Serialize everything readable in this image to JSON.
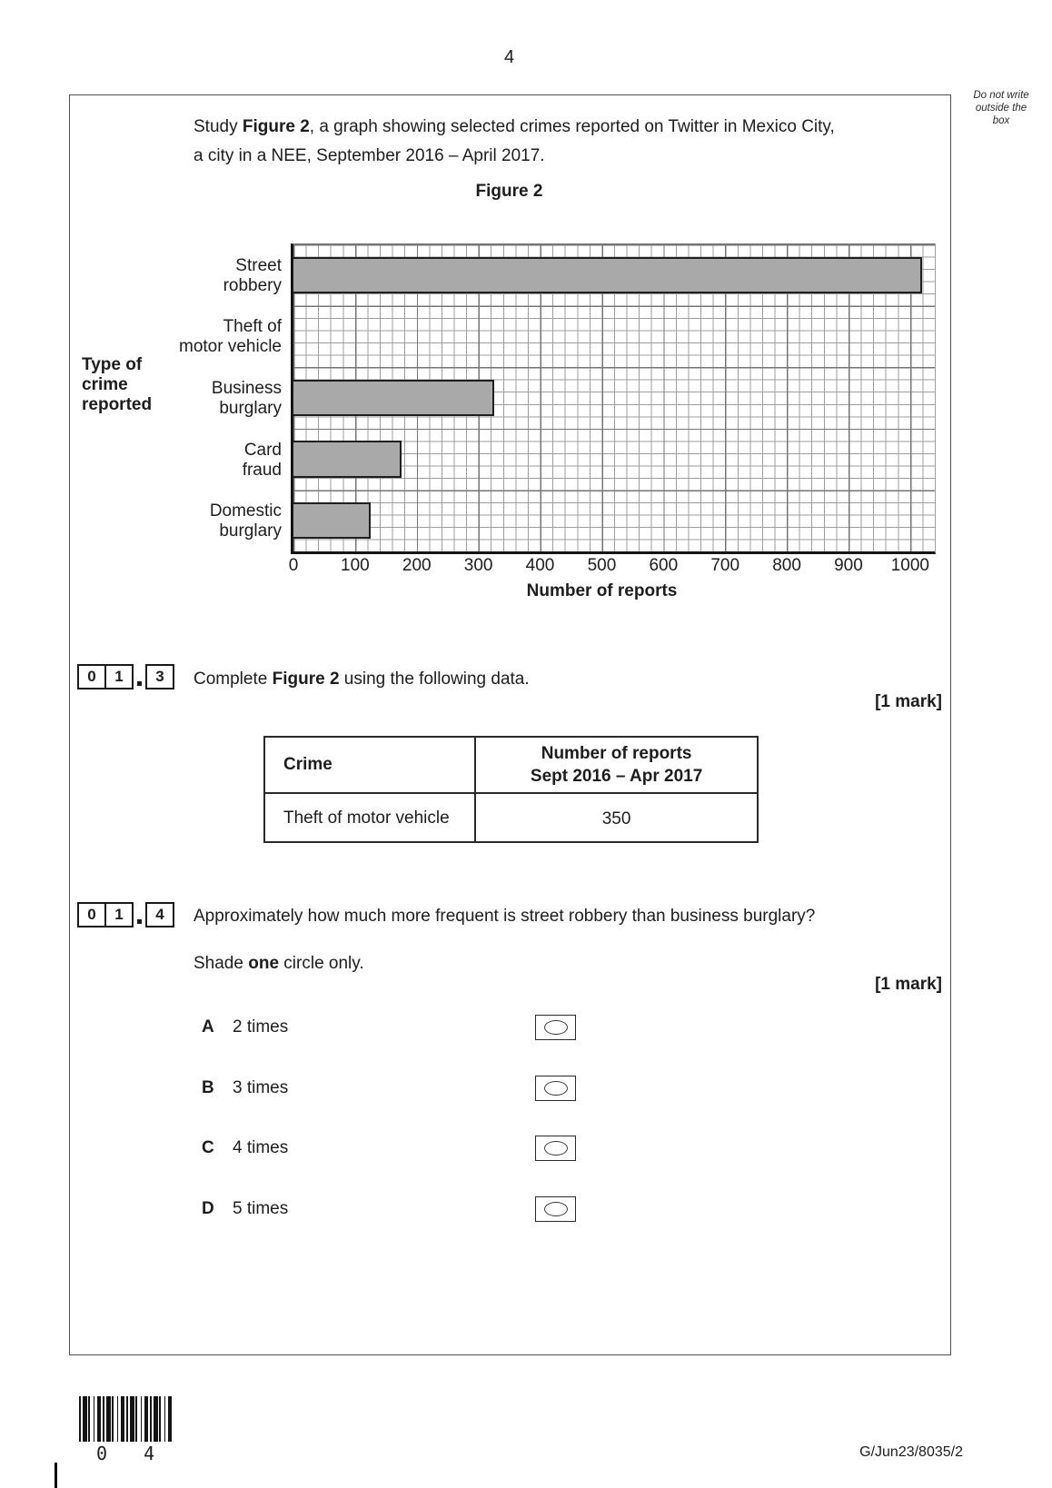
{
  "page": {
    "number": "4",
    "margin_note_lines": [
      "Do not write",
      "outside the",
      "box"
    ],
    "intro": {
      "prefix": "Study ",
      "bold": "Figure 2",
      "rest": ", a graph showing selected crimes reported on Twitter in Mexico City,",
      "line2": "a city in a NEE, September 2016 – April 2017."
    }
  },
  "chart_data": {
    "type": "bar",
    "orientation": "horizontal",
    "title": "Figure 2",
    "categories": [
      "Street robbery",
      "Theft of motor vehicle",
      "Business burglary",
      "Card fraud",
      "Domestic burglary"
    ],
    "category_label_lines": [
      [
        "Street",
        "robbery"
      ],
      [
        "Theft of",
        "motor vehicle"
      ],
      [
        "Business",
        "burglary"
      ],
      [
        "Card",
        "fraud"
      ],
      [
        "Domestic",
        "burglary"
      ]
    ],
    "values": [
      1020,
      null,
      325,
      175,
      125
    ],
    "blank_category": "Theft of motor vehicle",
    "xlabel": "Number of reports",
    "ylabel": "Type of crime reported",
    "ylabel_lines": [
      "Type of",
      "crime",
      "reported"
    ],
    "xlim": [
      0,
      1040
    ],
    "xticks": [
      0,
      100,
      200,
      300,
      400,
      500,
      600,
      700,
      800,
      900,
      1000
    ],
    "minor_grid_step": 20,
    "grid": true,
    "bar_color": "#a9a9a9"
  },
  "q3": {
    "digits": [
      "0",
      "1",
      "3"
    ],
    "text_prefix": "Complete ",
    "text_bold": "Figure 2",
    "text_rest": " using the following data.",
    "marks": "[1 mark]"
  },
  "table": {
    "col1_header": "Crime",
    "col2_header_line1": "Number of reports",
    "col2_header_line2": "Sept 2016 – Apr 2017",
    "rows": [
      {
        "crime": "Theft of motor vehicle",
        "reports": "350"
      }
    ]
  },
  "q4": {
    "digits": [
      "0",
      "1",
      "4"
    ],
    "text": "Approximately how much more frequent is street robbery than business burglary?",
    "shade_prefix": "Shade ",
    "shade_bold": "one",
    "shade_rest": " circle only.",
    "marks": "[1 mark]",
    "options": [
      {
        "letter": "A",
        "label": "2 times"
      },
      {
        "letter": "B",
        "label": "3 times"
      },
      {
        "letter": "C",
        "label": "4 times"
      },
      {
        "letter": "D",
        "label": "5 times"
      }
    ]
  },
  "footer": {
    "barcode_digits": "0 4",
    "reference": "G/Jun23/8035/2"
  }
}
